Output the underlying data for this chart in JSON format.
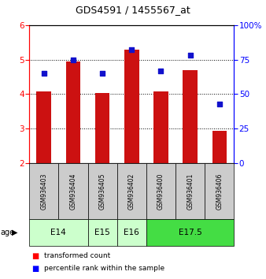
{
  "title": "GDS4591 / 1455567_at",
  "samples": [
    "GSM936403",
    "GSM936404",
    "GSM936405",
    "GSM936402",
    "GSM936400",
    "GSM936401",
    "GSM936406"
  ],
  "bar_values": [
    4.08,
    4.95,
    4.03,
    5.3,
    4.08,
    4.7,
    2.93
  ],
  "percentile_values": [
    65,
    75,
    65,
    82,
    67,
    78,
    43
  ],
  "bar_bottom": 2.0,
  "ylim_left": [
    2,
    6
  ],
  "ylim_right": [
    0,
    100
  ],
  "yticks_left": [
    2,
    3,
    4,
    5,
    6
  ],
  "yticks_right": [
    0,
    25,
    50,
    75,
    100
  ],
  "ytick_labels_right": [
    "0",
    "25",
    "50",
    "75",
    "100%"
  ],
  "bar_color": "#cc1111",
  "dot_color": "#1111cc",
  "age_groups": [
    {
      "label": "E14",
      "cols": [
        0,
        1
      ],
      "color": "#ccffcc"
    },
    {
      "label": "E15",
      "cols": [
        2,
        2
      ],
      "color": "#ccffcc"
    },
    {
      "label": "E16",
      "cols": [
        3,
        3
      ],
      "color": "#ccffcc"
    },
    {
      "label": "E17.5",
      "cols": [
        4,
        6
      ],
      "color": "#44dd44"
    }
  ],
  "sample_bg_color": "#cccccc",
  "legend_red_label": "transformed count",
  "legend_blue_label": "percentile rank within the sample",
  "bar_width": 0.5
}
